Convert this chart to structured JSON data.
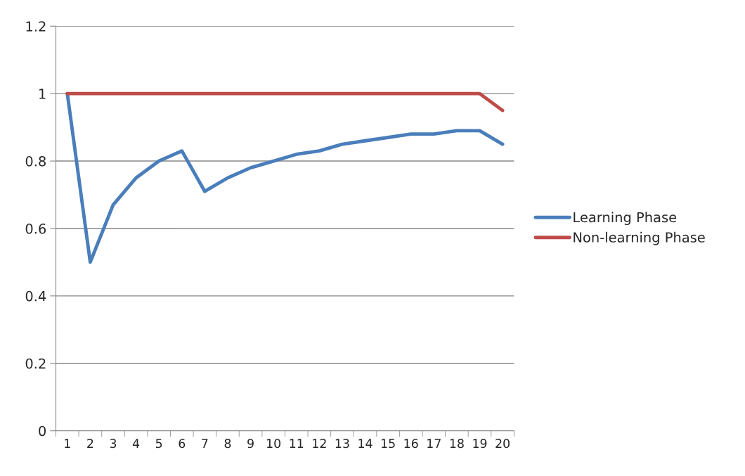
{
  "chart_data": {
    "type": "line",
    "categories": [
      "1",
      "2",
      "3",
      "4",
      "5",
      "6",
      "7",
      "8",
      "9",
      "10",
      "11",
      "12",
      "13",
      "14",
      "15",
      "16",
      "17",
      "18",
      "19",
      "20"
    ],
    "series": [
      {
        "name": "Learning Phase",
        "color": "#4a7ebb",
        "values": [
          1,
          0.5,
          0.67,
          0.75,
          0.8,
          0.83,
          0.71,
          0.75,
          0.78,
          0.8,
          0.82,
          0.83,
          0.85,
          0.86,
          0.87,
          0.88,
          0.88,
          0.89,
          0.89,
          0.85
        ]
      },
      {
        "name": "Non-learning Phase",
        "color": "#be4b48",
        "values": [
          1,
          1,
          1,
          1,
          1,
          1,
          1,
          1,
          1,
          1,
          1,
          1,
          1,
          1,
          1,
          1,
          1,
          1,
          1,
          0.95
        ]
      }
    ],
    "ylim": [
      0,
      1.2
    ],
    "yticks": [
      0,
      0.2,
      0.4,
      0.6,
      0.8,
      1,
      1.2
    ],
    "grid": "y",
    "legend": "right",
    "marker": "none",
    "line_style": "solid"
  }
}
